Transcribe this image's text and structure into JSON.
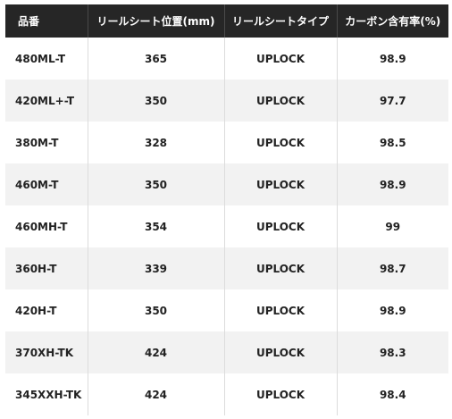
{
  "table": {
    "headers": [
      "品番",
      "リールシート位置(mm)",
      "リールシートタイプ",
      "カーボン含有率(%)"
    ],
    "rows": [
      [
        "480ML-T",
        "365",
        "UPLOCK",
        "98.9"
      ],
      [
        "420ML+-T",
        "350",
        "UPLOCK",
        "97.7"
      ],
      [
        "380M-T",
        "328",
        "UPLOCK",
        "98.5"
      ],
      [
        "460M-T",
        "350",
        "UPLOCK",
        "98.9"
      ],
      [
        "460MH-T",
        "354",
        "UPLOCK",
        "99"
      ],
      [
        "360H-T",
        "339",
        "UPLOCK",
        "98.7"
      ],
      [
        "420H-T",
        "350",
        "UPLOCK",
        "98.9"
      ],
      [
        "370XH-TK",
        "424",
        "UPLOCK",
        "98.3"
      ],
      [
        "345XXH-TK",
        "424",
        "UPLOCK",
        "98.4"
      ]
    ]
  },
  "colors": {
    "header_bg": "#262626",
    "header_text": "#ffffff",
    "row_alt_bg": "#f2f2f2",
    "body_text": "#222222"
  }
}
